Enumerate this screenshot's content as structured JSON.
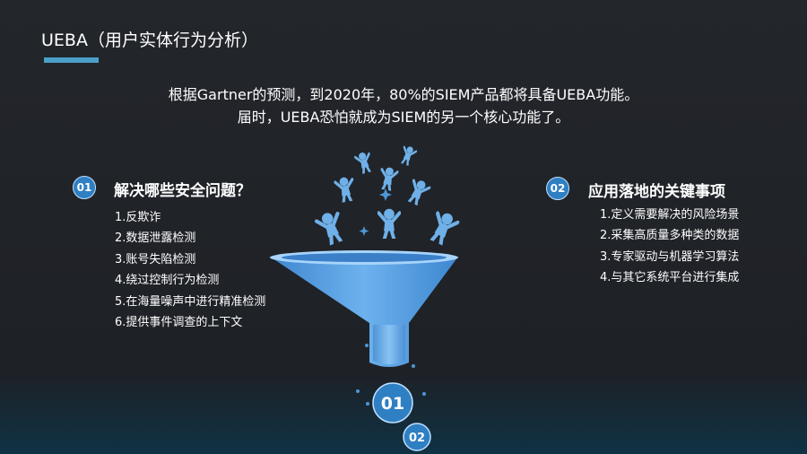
{
  "slide": {
    "title": "UEBA（用户实体行为分析）",
    "intro_line1": "根据Gartner的预测，到2020年，80%的SIEM产品都将具备UEBA功能。",
    "intro_line2": "届时，UEBA恐怕就成为SIEM的另一个核心功能了。"
  },
  "left_section": {
    "badge": "01",
    "heading": "解决哪些安全问题？",
    "items": [
      "1.反欺诈",
      "2.数据泄露检测",
      "3.账号失陷检测",
      "4.绕过控制行为检测",
      "5.在海量噪声中进行精准检测",
      "6.提供事件调查的上下文"
    ]
  },
  "right_section": {
    "badge": "02",
    "heading": "应用落地的关键事项",
    "items": [
      "1.定义需要解决的风险场景",
      "2.采集高质量多种类的数据",
      "3.专家驱动与机器学习算法",
      "4.与其它系统平台进行集成"
    ]
  },
  "funnel": {
    "output_badge_1": "01",
    "output_badge_2": "02"
  },
  "colors": {
    "accent": "#4aa0c8",
    "badge_blue": "#2f7fc3",
    "figure_blue": "#6fb0e8"
  }
}
